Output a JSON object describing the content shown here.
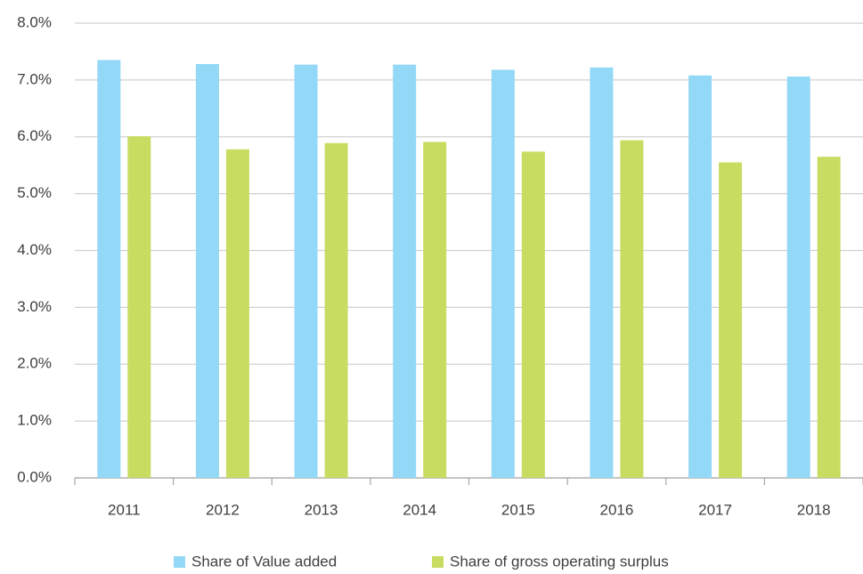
{
  "chart_data": {
    "type": "bar",
    "categories": [
      "2011",
      "2012",
      "2013",
      "2014",
      "2015",
      "2016",
      "2017",
      "2018"
    ],
    "series": [
      {
        "name": "Share of Value added",
        "color": "#93d8f6",
        "values": [
          7.35,
          7.28,
          7.27,
          7.27,
          7.18,
          7.22,
          7.08,
          7.06
        ]
      },
      {
        "name": "Share of gross operating surplus",
        "color": "#c9dc62",
        "values": [
          6.01,
          5.78,
          5.89,
          5.91,
          5.74,
          5.94,
          5.55,
          5.65
        ]
      }
    ],
    "ylim": [
      0,
      8
    ],
    "yticks": [
      {
        "value": 0,
        "label": "0.0%"
      },
      {
        "value": 1,
        "label": "1.0%"
      },
      {
        "value": 2,
        "label": "2.0%"
      },
      {
        "value": 3,
        "label": "3.0%"
      },
      {
        "value": 4,
        "label": "4.0%"
      },
      {
        "value": 5,
        "label": "5.0%"
      },
      {
        "value": 6,
        "label": "6.0%"
      },
      {
        "value": 7,
        "label": "7.0%"
      },
      {
        "value": 8,
        "label": "8.0%"
      }
    ],
    "grid": true,
    "legend": "bottom"
  }
}
